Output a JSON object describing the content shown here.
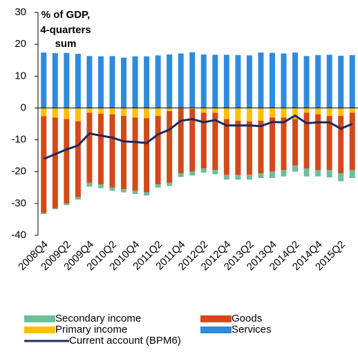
{
  "chart_data": {
    "type": "bar",
    "stacked": true,
    "title": [
      "% of GDP,",
      "4-quarters",
      "sum"
    ],
    "categories": [
      "2008Q4",
      null,
      "2009Q2",
      null,
      "2009Q4",
      null,
      "2010Q2",
      null,
      "2010Q4",
      null,
      "2011Q2",
      null,
      "2011Q4",
      null,
      "2012Q2",
      null,
      "2012Q4",
      null,
      "2013Q2",
      null,
      "2013Q4",
      null,
      "2014Q2",
      null,
      "2014Q4",
      null,
      "2015Q2",
      null
    ],
    "series": [
      {
        "name": "Secondary income",
        "color": "#6bbf9a",
        "values": [
          -0.3,
          -0.3,
          -0.5,
          -0.8,
          -1.2,
          -1.2,
          -1.0,
          -1.0,
          -1.0,
          -1.0,
          -1.0,
          -1.0,
          -1.2,
          -1.2,
          -1.3,
          -1.3,
          -1.5,
          -1.5,
          -1.5,
          -1.5,
          -2.0,
          -2.0,
          -2.0,
          -2.5,
          -2.0,
          -2.3,
          -2.5,
          -2.5
        ]
      },
      {
        "name": "Goods",
        "color": "#d2491a",
        "values": [
          -30.4,
          -28.5,
          -26.5,
          -23.8,
          -22,
          -22.2,
          -23,
          -23,
          -23,
          -23.3,
          -21.5,
          -22.5,
          -20.3,
          -19.7,
          -17.5,
          -18,
          -17.5,
          -17,
          -16.8,
          -16.5,
          -17,
          -16.5,
          -14.5,
          -17.5,
          -17.5,
          -17,
          -18,
          -18
        ]
      },
      {
        "name": "Primary income",
        "color": "#ffc000",
        "values": [
          -2.6,
          -3.0,
          -3.5,
          -4.2,
          -1.5,
          -1.8,
          -2.0,
          -2.5,
          -3.0,
          -3.2,
          -2.5,
          -1.0,
          -0.2,
          -0.3,
          -1.5,
          -1.5,
          -3.5,
          -4.0,
          -4.2,
          -4.0,
          -3.0,
          -3.0,
          -3.5,
          -1.5,
          -2.0,
          -2.5,
          -2.5,
          -1.5
        ]
      },
      {
        "name": "Services",
        "color": "#2f8be0",
        "values": [
          17.4,
          17.2,
          17.3,
          17.0,
          16.3,
          16.2,
          16.3,
          15.8,
          16.2,
          16.2,
          16.5,
          16.8,
          17.1,
          17.5,
          16.8,
          16.7,
          16.7,
          16.6,
          16.5,
          17.4,
          17.3,
          17.1,
          17.4,
          16.3,
          16.6,
          16.7,
          16.4,
          16.6
        ]
      },
      {
        "name": "Current account (BPM6)",
        "type": "line",
        "color": "#1f2a5a",
        "values": [
          -16,
          -14.5,
          -13,
          -11.8,
          -8,
          -8.7,
          -9.3,
          -10.5,
          -10.7,
          -11,
          -8.3,
          -6.8,
          -4,
          -3.5,
          -4.5,
          -3.8,
          -5.5,
          -5.5,
          -5.5,
          -5.7,
          -4.4,
          -4.5,
          -2.4,
          -4.8,
          -4.5,
          -4.5,
          -6.5,
          -5
        ]
      }
    ],
    "ylim": [
      -40,
      30
    ],
    "yticks": [
      -40,
      -30,
      -20,
      -10,
      0,
      10,
      20,
      30
    ]
  }
}
